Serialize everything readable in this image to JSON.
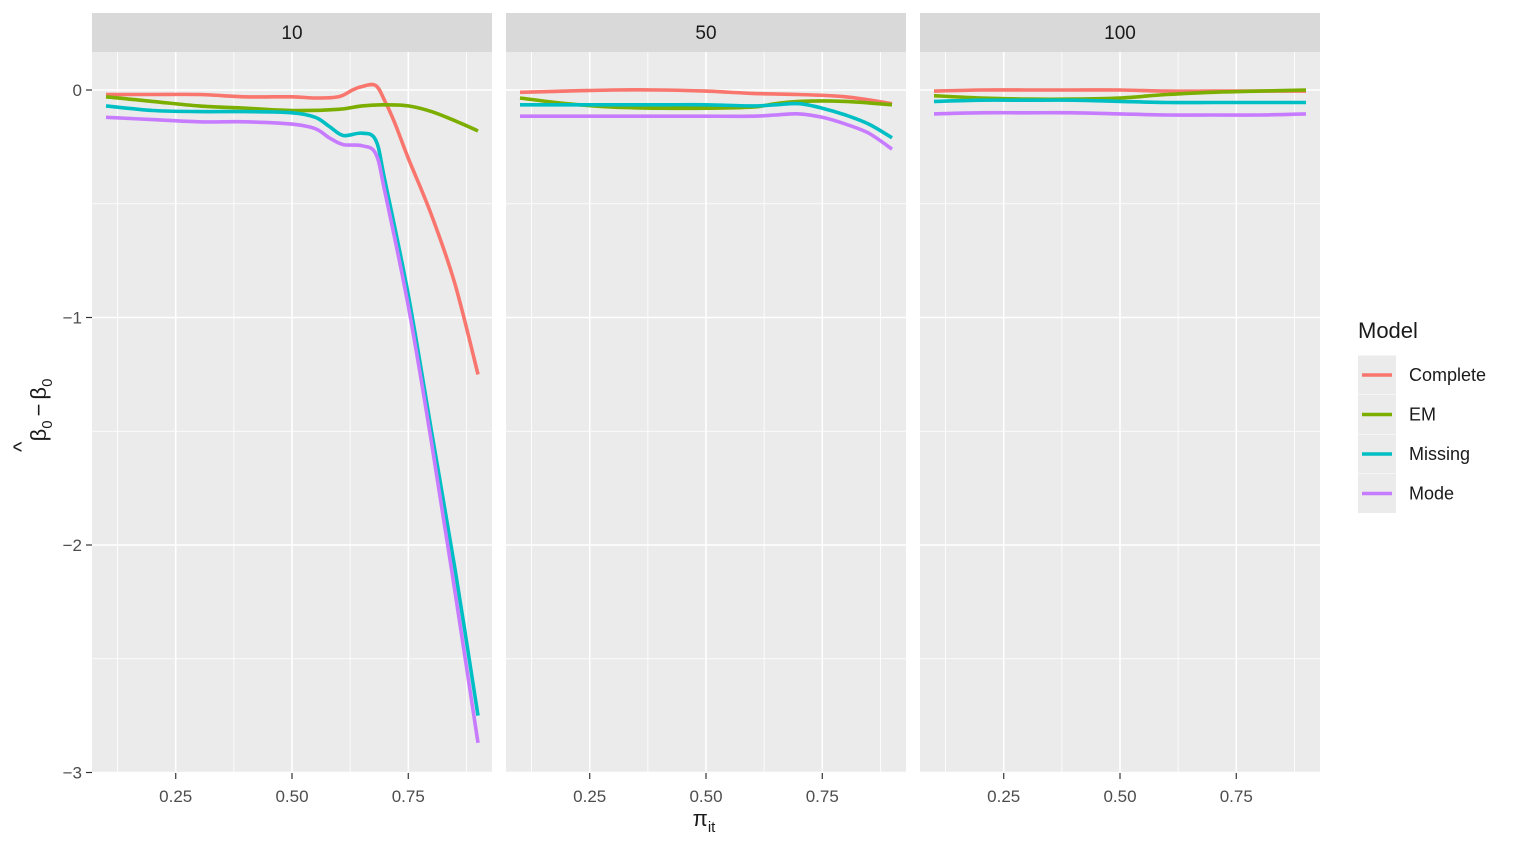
{
  "chart_data": {
    "type": "line",
    "facet_variable_values": [
      "10",
      "50",
      "100"
    ],
    "xlabel": "π",
    "xlabel_subscript": "it",
    "ylabel_main": "β",
    "ylabel_hat": "^",
    "ylabel_sub": "0",
    "ylabel_minus": "−",
    "ylabel_main2": "β",
    "ylabel_sub2": "0",
    "xlim": [
      0.07,
      0.93
    ],
    "ylim": [
      -3.0,
      0.2
    ],
    "x_ticks": [
      0.25,
      0.5,
      0.75
    ],
    "x_tick_labels": [
      "0.25",
      "0.50",
      "0.75"
    ],
    "y_ticks": [
      0,
      -1,
      -2,
      -3
    ],
    "y_tick_labels": [
      "0",
      "−1",
      "−2",
      "−3"
    ],
    "grid": true,
    "legend_position": "right",
    "legend_title": "Model",
    "series_colors": {
      "Complete": "#F8766D",
      "EM": "#7CAE00",
      "Missing": "#00BFC4",
      "Mode": "#C77CFF"
    },
    "panels": [
      {
        "facet": "10",
        "series": [
          {
            "name": "Complete",
            "x": [
              0.1,
              0.2,
              0.3,
              0.4,
              0.5,
              0.55,
              0.6,
              0.63,
              0.65,
              0.68,
              0.7,
              0.72,
              0.75,
              0.8,
              0.85,
              0.9
            ],
            "y": [
              -0.02,
              -0.02,
              -0.02,
              -0.03,
              -0.03,
              -0.035,
              -0.03,
              0.0,
              0.015,
              0.02,
              -0.05,
              -0.14,
              -0.3,
              -0.55,
              -0.85,
              -1.25
            ]
          },
          {
            "name": "EM",
            "x": [
              0.1,
              0.2,
              0.3,
              0.4,
              0.5,
              0.6,
              0.65,
              0.7,
              0.75,
              0.8,
              0.85,
              0.9
            ],
            "y": [
              -0.03,
              -0.05,
              -0.07,
              -0.08,
              -0.09,
              -0.085,
              -0.07,
              -0.065,
              -0.07,
              -0.095,
              -0.135,
              -0.18
            ]
          },
          {
            "name": "Missing",
            "x": [
              0.1,
              0.2,
              0.3,
              0.4,
              0.5,
              0.55,
              0.58,
              0.61,
              0.65,
              0.68,
              0.7,
              0.75,
              0.8,
              0.85,
              0.9
            ],
            "y": [
              -0.07,
              -0.09,
              -0.095,
              -0.095,
              -0.1,
              -0.12,
              -0.16,
              -0.2,
              -0.19,
              -0.22,
              -0.4,
              -0.9,
              -1.5,
              -2.1,
              -2.75
            ]
          },
          {
            "name": "Mode",
            "x": [
              0.1,
              0.2,
              0.3,
              0.4,
              0.5,
              0.55,
              0.58,
              0.61,
              0.65,
              0.68,
              0.7,
              0.75,
              0.8,
              0.85,
              0.9
            ],
            "y": [
              -0.12,
              -0.13,
              -0.14,
              -0.14,
              -0.15,
              -0.17,
              -0.21,
              -0.24,
              -0.245,
              -0.28,
              -0.45,
              -0.95,
              -1.55,
              -2.2,
              -2.87
            ]
          }
        ]
      },
      {
        "facet": "50",
        "series": [
          {
            "name": "Complete",
            "x": [
              0.1,
              0.2,
              0.3,
              0.4,
              0.5,
              0.6,
              0.7,
              0.8,
              0.9
            ],
            "y": [
              -0.01,
              -0.005,
              0.0,
              0.0,
              -0.005,
              -0.015,
              -0.02,
              -0.03,
              -0.06
            ]
          },
          {
            "name": "EM",
            "x": [
              0.1,
              0.2,
              0.3,
              0.4,
              0.5,
              0.6,
              0.65,
              0.7,
              0.8,
              0.9
            ],
            "y": [
              -0.035,
              -0.06,
              -0.075,
              -0.08,
              -0.08,
              -0.075,
              -0.06,
              -0.05,
              -0.05,
              -0.065
            ]
          },
          {
            "name": "Missing",
            "x": [
              0.1,
              0.2,
              0.3,
              0.4,
              0.5,
              0.6,
              0.65,
              0.7,
              0.75,
              0.8,
              0.85,
              0.9
            ],
            "y": [
              -0.065,
              -0.065,
              -0.065,
              -0.065,
              -0.065,
              -0.07,
              -0.065,
              -0.06,
              -0.08,
              -0.11,
              -0.15,
              -0.21
            ]
          },
          {
            "name": "Mode",
            "x": [
              0.1,
              0.2,
              0.3,
              0.4,
              0.5,
              0.6,
              0.65,
              0.7,
              0.75,
              0.8,
              0.85,
              0.9
            ],
            "y": [
              -0.115,
              -0.115,
              -0.115,
              -0.115,
              -0.115,
              -0.115,
              -0.11,
              -0.105,
              -0.12,
              -0.15,
              -0.19,
              -0.26
            ]
          }
        ]
      },
      {
        "facet": "100",
        "series": [
          {
            "name": "Complete",
            "x": [
              0.1,
              0.2,
              0.3,
              0.4,
              0.5,
              0.6,
              0.7,
              0.8,
              0.9
            ],
            "y": [
              -0.005,
              0.0,
              0.0,
              0.0,
              0.0,
              -0.005,
              -0.005,
              -0.005,
              -0.005
            ]
          },
          {
            "name": "EM",
            "x": [
              0.1,
              0.2,
              0.3,
              0.4,
              0.5,
              0.6,
              0.7,
              0.8,
              0.9
            ],
            "y": [
              -0.025,
              -0.035,
              -0.04,
              -0.04,
              -0.035,
              -0.02,
              -0.01,
              -0.005,
              0.0
            ]
          },
          {
            "name": "Missing",
            "x": [
              0.1,
              0.2,
              0.3,
              0.4,
              0.5,
              0.6,
              0.7,
              0.8,
              0.9
            ],
            "y": [
              -0.05,
              -0.045,
              -0.045,
              -0.045,
              -0.05,
              -0.055,
              -0.055,
              -0.055,
              -0.055
            ]
          },
          {
            "name": "Mode",
            "x": [
              0.1,
              0.2,
              0.3,
              0.4,
              0.5,
              0.6,
              0.7,
              0.8,
              0.9
            ],
            "y": [
              -0.105,
              -0.1,
              -0.1,
              -0.1,
              -0.105,
              -0.11,
              -0.11,
              -0.11,
              -0.105
            ]
          }
        ]
      }
    ]
  }
}
